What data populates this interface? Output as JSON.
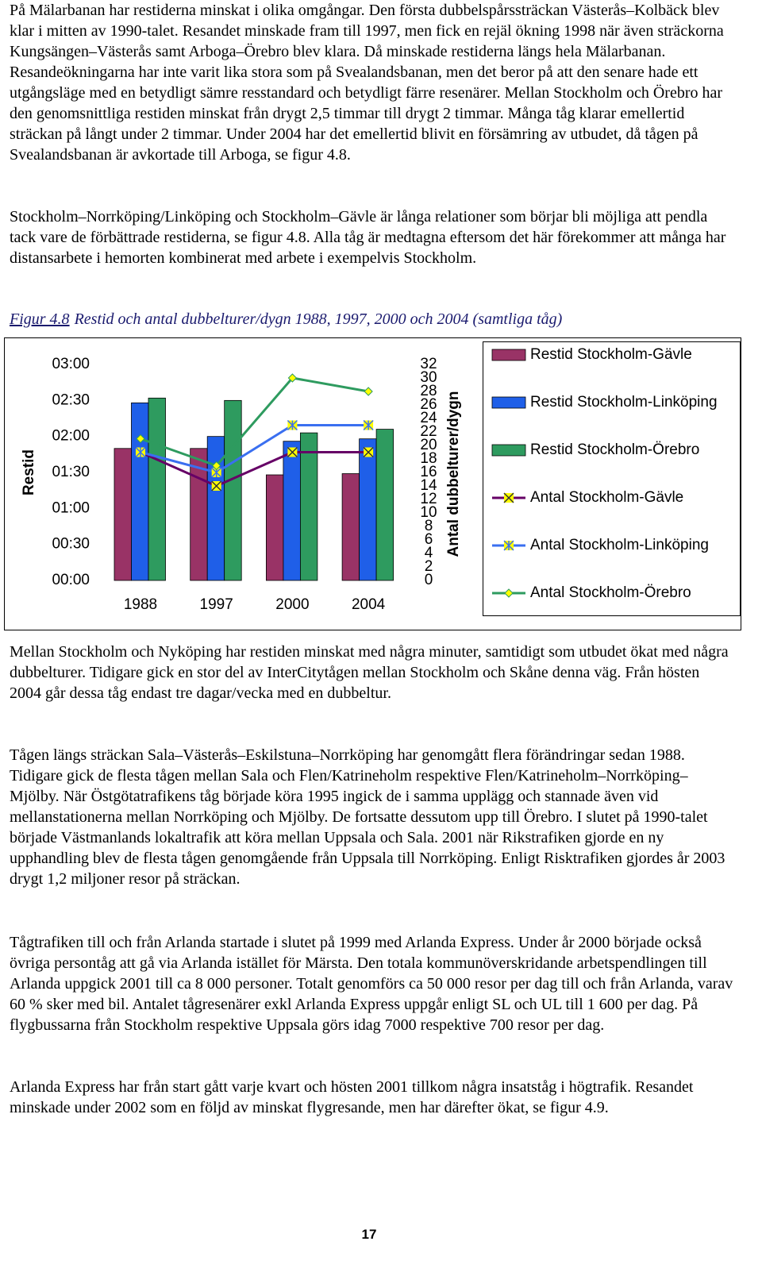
{
  "paragraphs": [
    "På Mälarbanan har restiderna minskat i olika omgångar. Den första dubbelspårssträckan Västerås–Kolbäck blev klar i mitten av 1990-talet. Resandet minskade fram till 1997, men fick en rejäl ökning 1998 när även sträckorna Kungsängen–Västerås samt Arboga–Örebro blev klara. Då minskade restiderna längs hela Mälarbanan. Resandeökningarna har inte varit lika stora som på Svealandsbanan, men det beror på att den senare hade ett utgångsläge med en betydligt sämre resstandard och betydligt färre resenärer. Mellan Stockholm och Örebro har den genomsnittliga restiden minskat från drygt 2,5 timmar till drygt 2 timmar. Många tåg klarar emellertid sträckan på långt under 2 timmar. Under 2004 har det emellertid blivit en försämring av utbudet, då tågen på Svealandsbanan är avkortade till Arboga, se figur 4.8.",
    "Stockholm–Norrköping/Linköping och Stockholm–Gävle är långa relationer som börjar bli möjliga att pendla tack vare de förbättrade restiderna, se figur 4.8. Alla tåg är medtagna eftersom det här förekommer att många har distansarbete i hemorten kombinerat med arbete i exempelvis Stockholm.",
    "Mellan Stockholm och Nyköping har restiden minskat med några minuter, samtidigt som utbudet ökat med några dubbelturer. Tidigare gick en stor del av InterCitytågen mellan Stockholm och Skåne denna väg. Från hösten 2004 går dessa tåg endast tre dagar/vecka med en dubbeltur.",
    "Tågen längs sträckan Sala–Västerås–Eskilstuna–Norrköping har genomgått flera förändringar sedan 1988. Tidigare gick de flesta tågen mellan Sala och Flen/Katrineholm respektive Flen/Katrineholm–Norrköping–Mjölby. När Östgötatrafikens tåg började köra 1995 ingick de i samma upplägg och stannade även vid mellanstationerna mellan Norrköping och Mjölby. De fortsatte dessutom upp till Örebro. I slutet på 1990-talet började Västmanlands lokaltrafik att köra mellan Uppsala och Sala. 2001 när Rikstrafiken gjorde en ny upphandling blev de flesta tågen genomgående från Uppsala till Norrköping. Enligt Risktrafiken gjordes år 2003 drygt 1,2 miljoner resor på sträckan.",
    "Tågtrafiken till och från Arlanda startade i slutet på 1999 med Arlanda Express. Under år 2000 började också övriga persontåg att gå via Arlanda istället för Märsta. Den totala kommunöverskridande arbetspendlingen till Arlanda uppgick 2001 till ca 8 000 personer. Totalt genomförs ca 50 000 resor per dag till och från Arlanda, varav 60 % sker med bil. Antalet tågresenärer exkl Arlanda Express uppgår enligt SL och UL till 1 600 per dag. På flygbussarna från Stockholm respektive Uppsala görs idag 7000 respektive 700 resor per dag.",
    "Arlanda Express har från start gått varje kvart och hösten 2001 tillkom några insatståg i högtrafik. Resandet minskade under 2002 som en följd av minskat flygresande, men har därefter ökat, se figur 4.9."
  ],
  "caption": {
    "label": "Figur 4.8",
    "text": "Restid och antal dubbelturer/dygn 1988, 1997, 2000 och 2004 (samtliga tåg)"
  },
  "chart_data": {
    "type": "bar-line",
    "categories": [
      "1988",
      "1997",
      "2000",
      "2004"
    ],
    "ylabel": "Restid",
    "y2label": "Antal dubbelturer/dygn",
    "ylim": [
      0,
      180
    ],
    "yticks": [
      {
        "value": 0,
        "label": "00:00"
      },
      {
        "value": 30,
        "label": "00:30"
      },
      {
        "value": 60,
        "label": "01:00"
      },
      {
        "value": 90,
        "label": "01:30"
      },
      {
        "value": 120,
        "label": "02:00"
      },
      {
        "value": 150,
        "label": "02:30"
      },
      {
        "value": 180,
        "label": "03:00"
      }
    ],
    "y2lim": [
      0,
      32
    ],
    "y2ticks": [
      0,
      2,
      4,
      6,
      8,
      10,
      12,
      14,
      16,
      18,
      20,
      22,
      24,
      26,
      28,
      30,
      32
    ],
    "series": [
      {
        "name": "Restid Stockholm-Gävle",
        "type": "bar",
        "color": "#993366",
        "values": [
          110,
          110,
          88,
          89
        ]
      },
      {
        "name": "Restid Stockholm-Linköping",
        "type": "bar",
        "color": "#1f5fe8",
        "values": [
          148,
          120,
          116,
          118
        ]
      },
      {
        "name": "Restid Stockholm-Örebro",
        "type": "bar",
        "color": "#2e9b5f",
        "values": [
          152,
          150,
          123,
          126
        ]
      },
      {
        "name": "Antal Stockholm-Gävle",
        "type": "line",
        "axis": "y2",
        "color": "#660066",
        "marker": "x-square",
        "values": [
          19,
          14,
          19,
          19
        ]
      },
      {
        "name": "Antal Stockholm-Linköping",
        "type": "line",
        "axis": "y2",
        "color": "#3a6ff0",
        "marker": "star-square",
        "values": [
          19,
          16,
          23,
          23
        ]
      },
      {
        "name": "Antal Stockholm-Örebro",
        "type": "line",
        "axis": "y2",
        "color": "#2e9b5f",
        "marker": "diamond",
        "values": [
          21,
          17,
          30,
          28
        ]
      }
    ]
  },
  "page_number": "17"
}
